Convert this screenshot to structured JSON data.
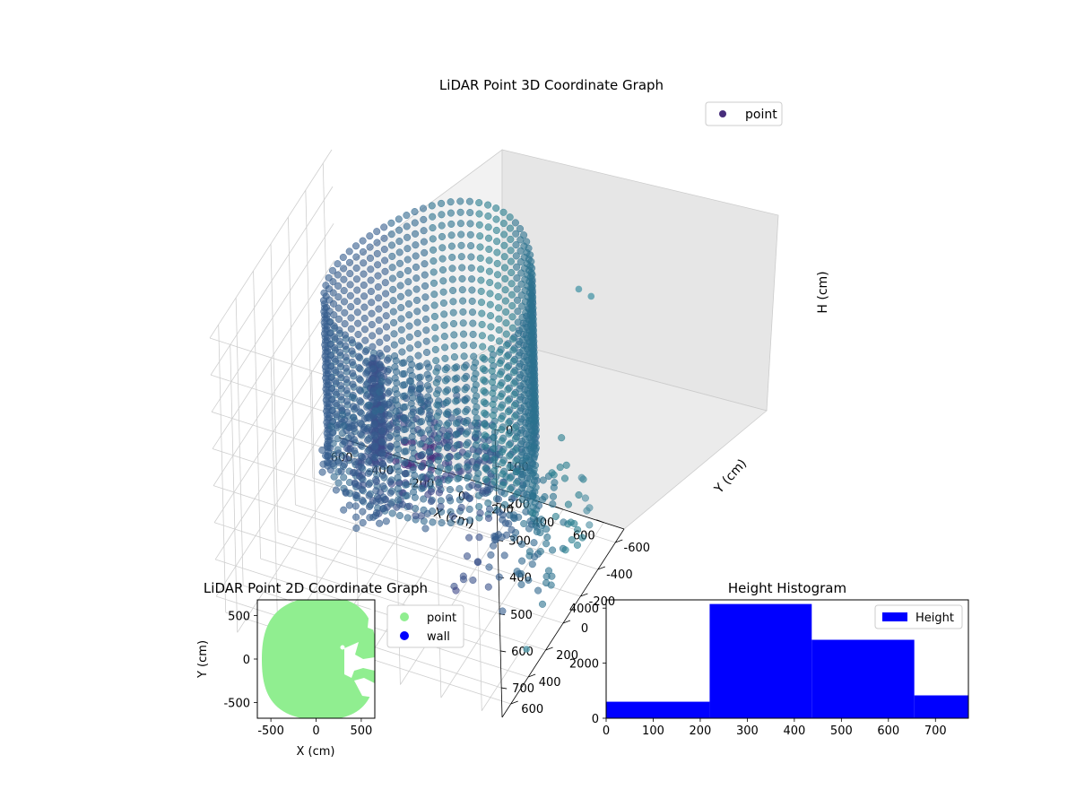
{
  "chart_data": [
    {
      "type": "scatter",
      "title": "LiDAR Point 3D Coordinate Graph",
      "xlabel": "X (cm)",
      "ylabel": "Y (cm)",
      "zlabel": "H (cm)",
      "xlim": [
        -700,
        700
      ],
      "ylim": [
        -700,
        700
      ],
      "zlim": [
        780,
        0
      ],
      "x_ticks": [
        "-600",
        "-400",
        "-200",
        "0",
        "200",
        "400",
        "600"
      ],
      "y_ticks": [
        "-600",
        "-400",
        "-200",
        "0",
        "200",
        "400",
        "600"
      ],
      "z_ticks": [
        "0",
        "100",
        "200",
        "300",
        "400",
        "500",
        "600",
        "700"
      ],
      "z_inverted": true,
      "grid": true,
      "legend": {
        "placement": "upper-right",
        "entries": [
          {
            "label": "point",
            "color": "#472d7b"
          }
        ]
      },
      "colormap": "viridis (by distance)",
      "series": [
        {
          "name": "point",
          "description_color": "#472d7b",
          "points": [
            {
              "x": 550,
              "y": -600,
              "h": 120
            },
            {
              "x": 700,
              "y": -400,
              "h": 40
            },
            {
              "x": 650,
              "y": 300,
              "h": 750
            }
          ]
        }
      ]
    },
    {
      "type": "scatter",
      "title": "LiDAR Point 2D Coordinate Graph",
      "xlabel": "X (cm)",
      "ylabel": "Y (cm)",
      "xlim": [
        -650,
        650
      ],
      "ylim": [
        -680,
        680
      ],
      "x_ticks": [
        "-500",
        "0",
        "500"
      ],
      "y_ticks": [
        "-500",
        "0",
        "500"
      ],
      "grid": false,
      "legend": {
        "placement": "outside-right",
        "entries": [
          {
            "label": "point",
            "color": "#90ee90"
          },
          {
            "label": "wall",
            "color": "#0000ff"
          }
        ]
      }
    },
    {
      "type": "bar",
      "title": "Height Histogram",
      "xlabel": "",
      "ylabel": "",
      "xlim": [
        0,
        770
      ],
      "ylim": [
        0,
        4300
      ],
      "x_ticks": [
        "0",
        "100",
        "200",
        "300",
        "400",
        "500",
        "600",
        "700"
      ],
      "y_ticks": [
        "0",
        "2000",
        "4000"
      ],
      "bins": [
        {
          "start": 0,
          "end": 220,
          "count": 600
        },
        {
          "start": 220,
          "end": 437,
          "count": 4150
        },
        {
          "start": 437,
          "end": 655,
          "count": 2850
        },
        {
          "start": 655,
          "end": 875,
          "count": 830
        }
      ],
      "series": [
        {
          "name": "Height",
          "color": "#0000ff"
        }
      ],
      "legend": {
        "placement": "upper-right",
        "entries": [
          {
            "label": "Height",
            "color": "#0000ff"
          }
        ]
      }
    }
  ]
}
